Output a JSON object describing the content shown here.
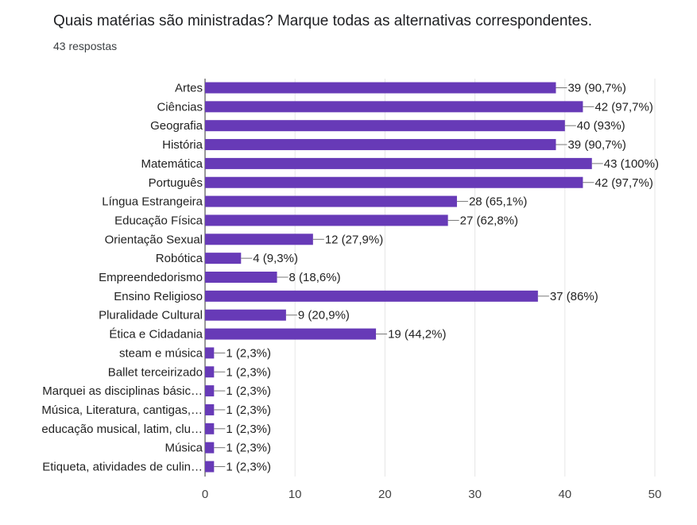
{
  "title": "Quais matérias são ministradas? Marque todas as alternativas correspondentes.",
  "subtitle": "43 respostas",
  "chart_data": {
    "type": "bar",
    "orientation": "horizontal",
    "total_responses": 43,
    "bar_color": "#673ab7",
    "xlim": [
      0,
      50
    ],
    "xticks": [
      0,
      10,
      20,
      30,
      40,
      50
    ],
    "grid": true,
    "categories": [
      "Artes",
      "Ciências",
      "Geografia",
      "História",
      "Matemática",
      "Português",
      "Língua Estrangeira",
      "Educação Física",
      "Orientação Sexual",
      "Robótica",
      "Empreendedorismo",
      "Ensino Religioso",
      "Pluralidade Cultural",
      "Ética e Cidadania",
      "steam e música",
      "Ballet terceirizado",
      "Marquei as disciplinas básic…",
      "Música, Literatura, cantigas,…",
      "educação musical, latim, clu…",
      "Música",
      "Etiqueta, atividades de culin…"
    ],
    "values": [
      39,
      42,
      40,
      39,
      43,
      42,
      28,
      27,
      12,
      4,
      8,
      37,
      9,
      19,
      1,
      1,
      1,
      1,
      1,
      1,
      1
    ],
    "value_labels": [
      "39 (90,7%)",
      "42 (97,7%)",
      "40 (93%)",
      "39 (90,7%)",
      "43 (100%)",
      "42 (97,7%)",
      "28 (65,1%)",
      "27 (62,8%)",
      "12 (27,9%)",
      "4 (9,3%)",
      "8 (18,6%)",
      "37 (86%)",
      "9 (20,9%)",
      "19 (44,2%)",
      "1 (2,3%)",
      "1 (2,3%)",
      "1 (2,3%)",
      "1 (2,3%)",
      "1 (2,3%)",
      "1 (2,3%)",
      "1 (2,3%)"
    ]
  }
}
